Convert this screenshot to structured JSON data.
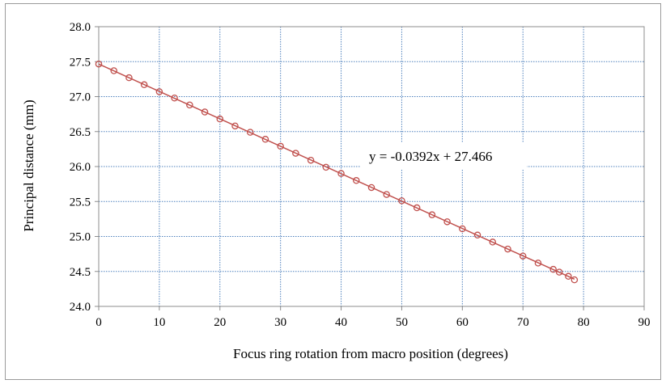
{
  "chart_data": {
    "type": "scatter",
    "xlabel": "Focus ring rotation from macro position (degrees)",
    "ylabel": "Principal distance (mm)",
    "xlim": [
      0,
      90
    ],
    "ylim": [
      24.0,
      28.0
    ],
    "x_ticks": [
      "0",
      "10",
      "20",
      "30",
      "40",
      "50",
      "60",
      "70",
      "80",
      "90"
    ],
    "y_ticks": [
      "24.0",
      "24.5",
      "25.0",
      "25.5",
      "26.0",
      "26.5",
      "27.0",
      "27.5",
      "28.0"
    ],
    "grid": true,
    "series": [
      {
        "marker": "circle",
        "x": [
          0,
          2.5,
          5,
          7.5,
          10,
          12.5,
          15,
          17.5,
          20,
          22.5,
          25,
          27.5,
          30,
          32.5,
          35,
          37.5,
          40,
          42.5,
          45,
          47.5,
          50,
          52.5,
          55,
          57.5,
          60,
          62.5,
          65,
          67.5,
          70,
          72.5,
          75,
          76,
          77.5,
          78.5
        ],
        "y": [
          27.466,
          27.37,
          27.27,
          27.17,
          27.07,
          26.98,
          26.88,
          26.78,
          26.68,
          26.58,
          26.49,
          26.39,
          26.29,
          26.19,
          26.09,
          25.99,
          25.9,
          25.8,
          25.7,
          25.6,
          25.51,
          25.41,
          25.31,
          25.21,
          25.11,
          25.02,
          24.92,
          24.82,
          24.72,
          24.62,
          24.53,
          24.49,
          24.43,
          24.38
        ]
      }
    ],
    "trendline": {
      "slope": -0.0392,
      "intercept": 27.466,
      "x_range": [
        0,
        78.5
      ]
    },
    "annotation": "y = -0.0392x + 27.466",
    "colors": {
      "line": "#c0504d",
      "marker": "#c0504d",
      "grid": "#4f81bd"
    }
  }
}
